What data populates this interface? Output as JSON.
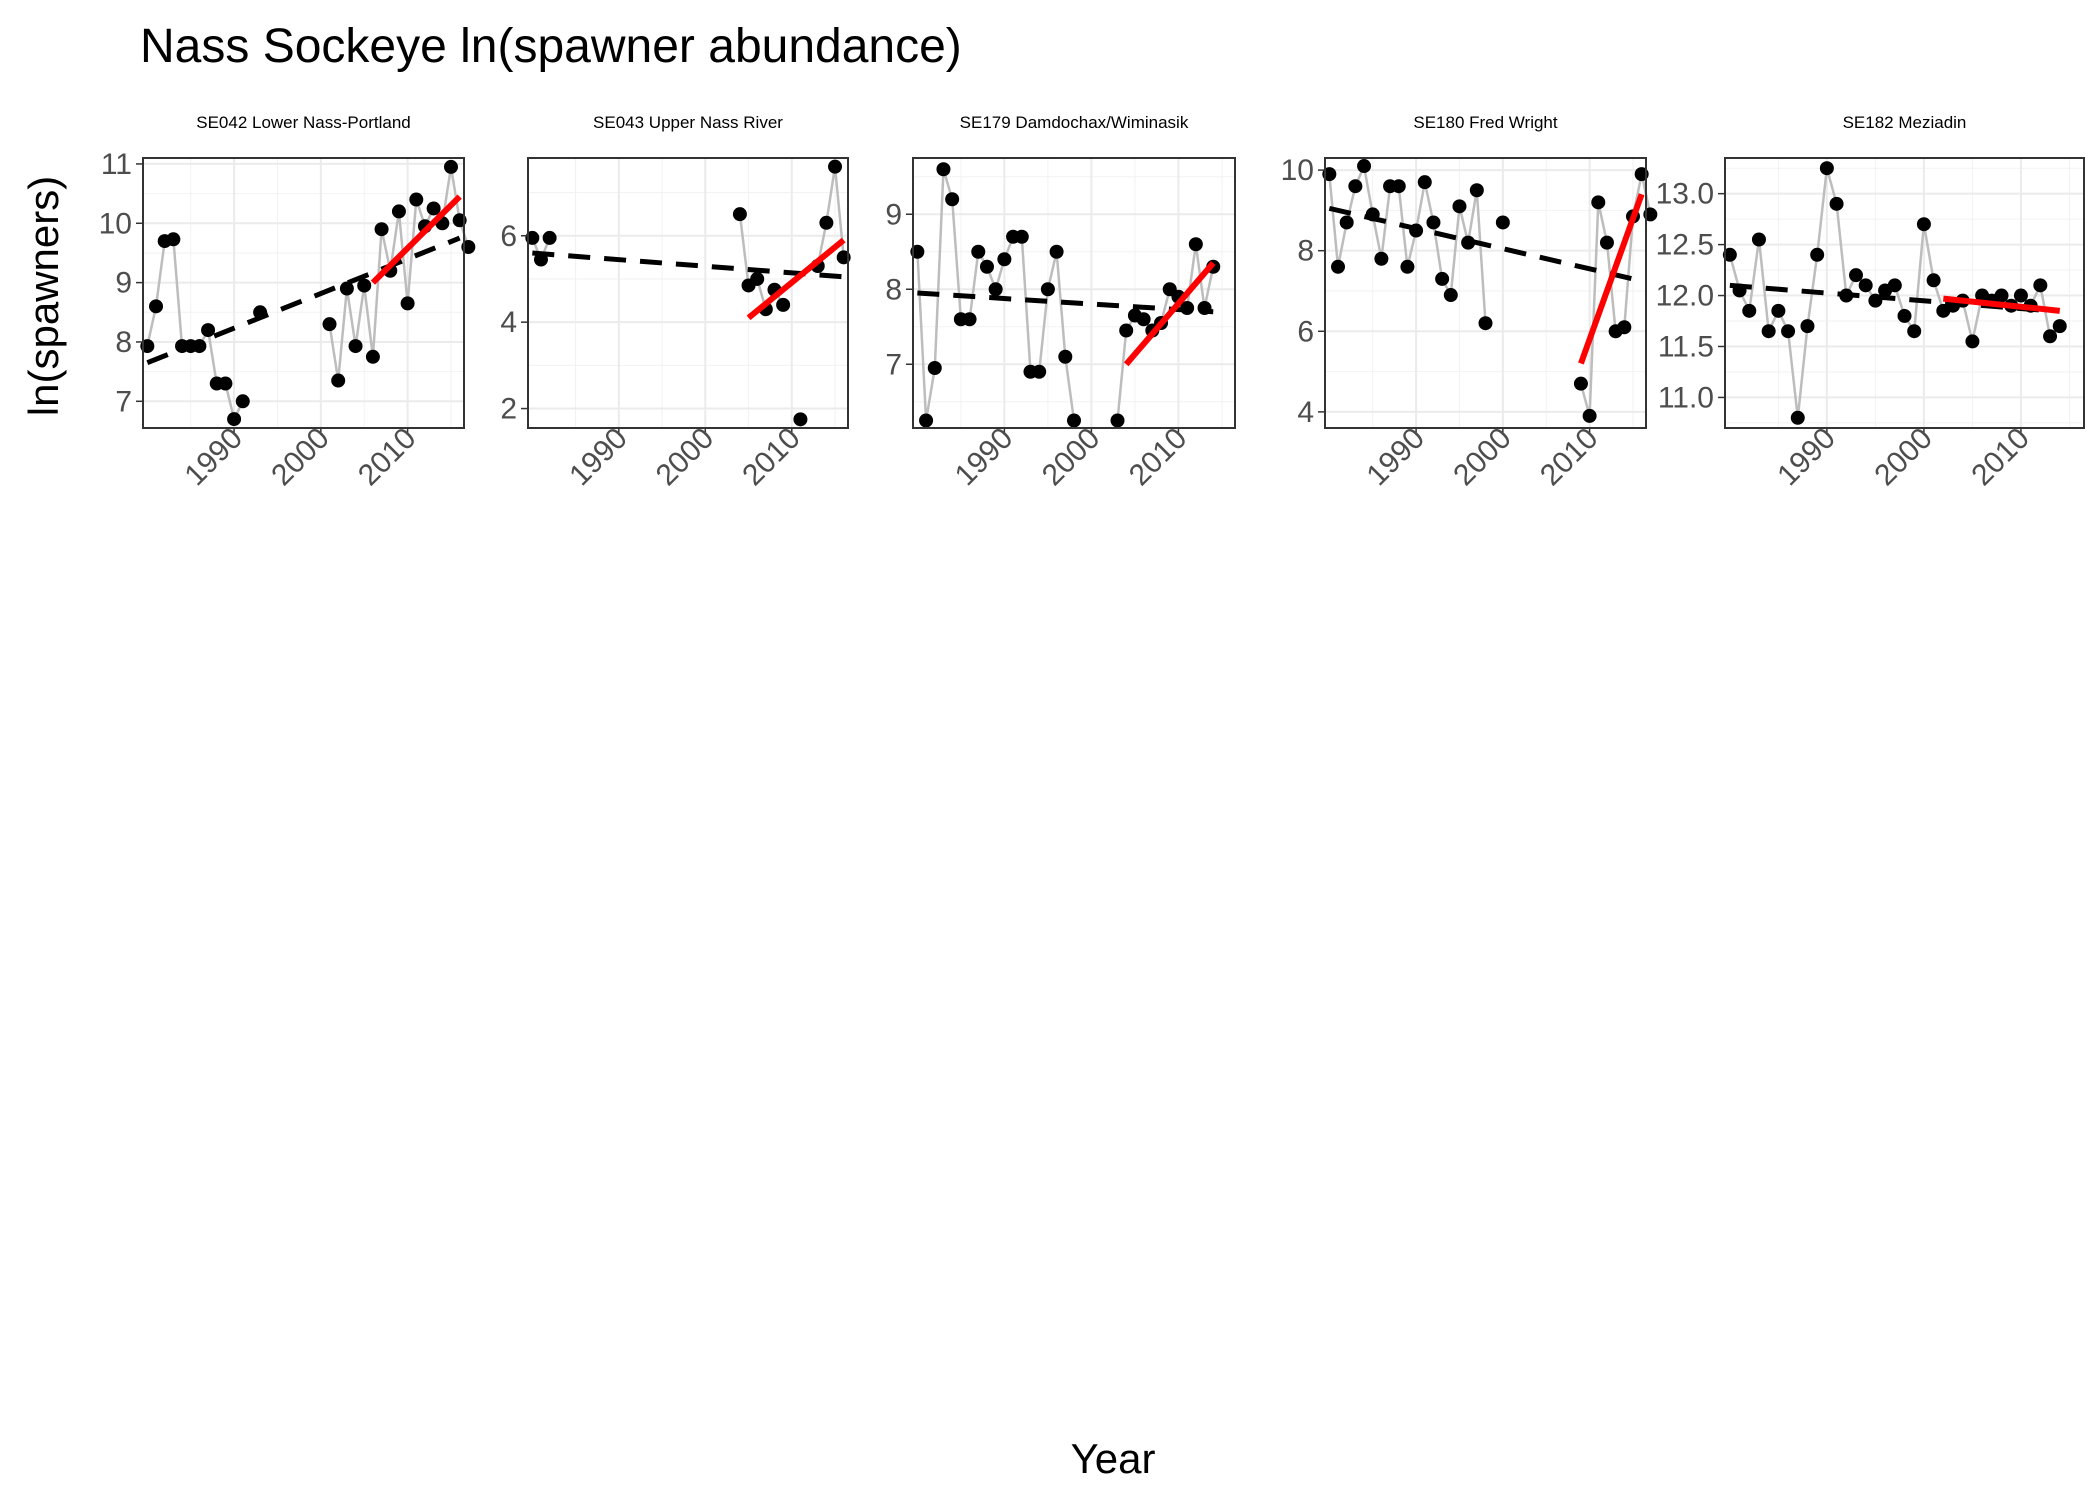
{
  "title": "Nass Sockeye ln(spawner abundance)",
  "xlabel": "Year",
  "ylabel": "ln(spawners)",
  "chart_data": {
    "type": "scatter",
    "title": "Nass Sockeye ln(spawner abundance)",
    "xlabel": "Year",
    "ylabel": "ln(spawners)",
    "grid": true,
    "legend": "none",
    "colors": {
      "points": "#000000",
      "connector": "#bdbdbd",
      "long_trend": "#000000",
      "recent_trend": "#ff0000"
    },
    "panels": [
      {
        "name": "SE042 Lower Nass-Portland",
        "xlim": [
          1979.5,
          2016.5
        ],
        "ylim": [
          6.55,
          11.1
        ],
        "x_ticks": [
          1990,
          2000,
          2010
        ],
        "y_ticks": [
          7,
          8,
          9,
          10,
          11
        ],
        "points": [
          [
            1980,
            7.93
          ],
          [
            1981,
            8.6
          ],
          [
            1982,
            9.7
          ],
          [
            1983,
            9.73
          ],
          [
            1984,
            7.93
          ],
          [
            1985,
            7.93
          ],
          [
            1986,
            7.93
          ],
          [
            1987,
            8.2
          ],
          [
            1988,
            7.3
          ],
          [
            1989,
            7.3
          ],
          [
            1990,
            6.7
          ],
          [
            1991,
            7.0
          ],
          [
            1993,
            8.5
          ],
          [
            2001,
            8.3
          ],
          [
            2002,
            7.35
          ],
          [
            2003,
            8.9
          ],
          [
            2004,
            7.93
          ],
          [
            2005,
            8.95
          ],
          [
            2006,
            7.75
          ],
          [
            2007,
            9.9
          ],
          [
            2008,
            9.2
          ],
          [
            2009,
            10.2
          ],
          [
            2010,
            8.65
          ],
          [
            2011,
            10.4
          ],
          [
            2012,
            9.95
          ],
          [
            2013,
            10.25
          ],
          [
            2014,
            10.0
          ],
          [
            2015,
            10.95
          ],
          [
            2016,
            10.05
          ],
          [
            2017,
            9.6
          ]
        ],
        "connected_segments": [
          [
            1980,
            1991
          ],
          [
            2001,
            2017
          ]
        ],
        "long_trend": {
          "x": [
            1980,
            2016
          ],
          "y": [
            7.65,
            9.75
          ]
        },
        "recent_trend": {
          "x": [
            2006,
            2016
          ],
          "y": [
            9.0,
            10.45
          ]
        }
      },
      {
        "name": "SE043 Upper Nass River",
        "xlim": [
          1979.5,
          2016.5
        ],
        "ylim": [
          1.55,
          7.8
        ],
        "x_ticks": [
          1990,
          2000,
          2010
        ],
        "y_ticks": [
          2,
          4,
          6
        ],
        "points": [
          [
            1980,
            5.95
          ],
          [
            1981,
            5.45
          ],
          [
            1982,
            5.95
          ],
          [
            2004,
            6.5
          ],
          [
            2005,
            4.85
          ],
          [
            2006,
            5.0
          ],
          [
            2007,
            4.3
          ],
          [
            2008,
            4.75
          ],
          [
            2009,
            4.4
          ],
          [
            2011,
            1.75
          ],
          [
            2013,
            5.3
          ],
          [
            2014,
            6.3
          ],
          [
            2015,
            7.6
          ],
          [
            2016,
            5.5
          ]
        ],
        "connected_segments": [
          [
            1980,
            1982
          ],
          [
            2004,
            2009
          ],
          [
            2013,
            2016
          ]
        ],
        "long_trend": {
          "x": [
            1980,
            2016
          ],
          "y": [
            5.6,
            5.05
          ]
        },
        "recent_trend": {
          "x": [
            2005,
            2016
          ],
          "y": [
            4.1,
            5.9
          ]
        }
      },
      {
        "name": "SE179 Damdochax/Wiminasik",
        "xlim": [
          1979.5,
          2016.5
        ],
        "ylim": [
          6.15,
          9.75
        ],
        "x_ticks": [
          1990,
          2000,
          2010
        ],
        "y_ticks": [
          7,
          8,
          9
        ],
        "points": [
          [
            1980,
            8.5
          ],
          [
            1981,
            6.25
          ],
          [
            1982,
            6.95
          ],
          [
            1983,
            9.6
          ],
          [
            1984,
            9.2
          ],
          [
            1985,
            7.6
          ],
          [
            1986,
            7.6
          ],
          [
            1987,
            8.5
          ],
          [
            1988,
            8.3
          ],
          [
            1989,
            8.0
          ],
          [
            1990,
            8.4
          ],
          [
            1991,
            8.7
          ],
          [
            1992,
            8.7
          ],
          [
            1993,
            6.9
          ],
          [
            1994,
            6.9
          ],
          [
            1995,
            8.0
          ],
          [
            1996,
            8.5
          ],
          [
            1997,
            7.1
          ],
          [
            1998,
            6.25
          ],
          [
            2003,
            6.25
          ],
          [
            2004,
            7.45
          ],
          [
            2005,
            7.65
          ],
          [
            2006,
            7.6
          ],
          [
            2007,
            7.45
          ],
          [
            2008,
            7.55
          ],
          [
            2009,
            8.0
          ],
          [
            2010,
            7.9
          ],
          [
            2011,
            7.75
          ],
          [
            2012,
            8.6
          ],
          [
            2013,
            7.75
          ],
          [
            2014,
            8.3
          ]
        ],
        "connected_segments": [
          [
            1980,
            1998
          ],
          [
            2003,
            2014
          ]
        ],
        "long_trend": {
          "x": [
            1980,
            2014
          ],
          "y": [
            7.95,
            7.7
          ]
        },
        "recent_trend": {
          "x": [
            2004,
            2014
          ],
          "y": [
            7.0,
            8.35
          ]
        }
      },
      {
        "name": "SE180 Fred Wright",
        "xlim": [
          1979.5,
          2016.5
        ],
        "ylim": [
          3.6,
          10.3
        ],
        "x_ticks": [
          1990,
          2000,
          2010
        ],
        "y_ticks": [
          4,
          6,
          8,
          10
        ],
        "points": [
          [
            1980,
            9.9
          ],
          [
            1981,
            7.6
          ],
          [
            1982,
            8.7
          ],
          [
            1983,
            9.6
          ],
          [
            1984,
            10.1
          ],
          [
            1985,
            8.9
          ],
          [
            1986,
            7.8
          ],
          [
            1987,
            9.6
          ],
          [
            1988,
            9.6
          ],
          [
            1989,
            7.6
          ],
          [
            1990,
            8.5
          ],
          [
            1991,
            9.7
          ],
          [
            1992,
            8.7
          ],
          [
            1993,
            7.3
          ],
          [
            1994,
            6.9
          ],
          [
            1995,
            9.1
          ],
          [
            1996,
            8.2
          ],
          [
            1997,
            9.5
          ],
          [
            1998,
            6.2
          ],
          [
            2000,
            8.7
          ],
          [
            2009,
            4.7
          ],
          [
            2010,
            3.9
          ],
          [
            2011,
            9.2
          ],
          [
            2012,
            8.2
          ],
          [
            2013,
            6.0
          ],
          [
            2014,
            6.1
          ],
          [
            2015,
            8.85
          ],
          [
            2016,
            9.9
          ],
          [
            2017,
            8.9
          ]
        ],
        "connected_segments": [
          [
            1980,
            1998
          ],
          [
            2009,
            2017
          ]
        ],
        "long_trend": {
          "x": [
            1980,
            2015
          ],
          "y": [
            9.05,
            7.3
          ]
        },
        "recent_trend": {
          "x": [
            2009,
            2016
          ],
          "y": [
            5.2,
            9.4
          ]
        }
      },
      {
        "name": "SE182 Meziadin",
        "xlim": [
          1979.5,
          2016.5
        ],
        "ylim": [
          10.7,
          13.35
        ],
        "x_ticks": [
          1990,
          2000,
          2010
        ],
        "y_ticks": [
          11.0,
          11.5,
          12.0,
          12.5,
          13.0
        ],
        "y_tick_labels": [
          "11.0",
          "11.5",
          "12.0",
          "12.5",
          "13.0"
        ],
        "points": [
          [
            1980,
            12.4
          ],
          [
            1981,
            12.05
          ],
          [
            1982,
            11.85
          ],
          [
            1983,
            12.55
          ],
          [
            1984,
            11.65
          ],
          [
            1985,
            11.85
          ],
          [
            1986,
            11.65
          ],
          [
            1987,
            10.8
          ],
          [
            1988,
            11.7
          ],
          [
            1989,
            12.4
          ],
          [
            1990,
            13.25
          ],
          [
            1991,
            12.9
          ],
          [
            1992,
            12.0
          ],
          [
            1993,
            12.2
          ],
          [
            1994,
            12.1
          ],
          [
            1995,
            11.95
          ],
          [
            1996,
            12.05
          ],
          [
            1997,
            12.1
          ],
          [
            1998,
            11.8
          ],
          [
            1999,
            11.65
          ],
          [
            2000,
            12.7
          ],
          [
            2001,
            12.15
          ],
          [
            2002,
            11.85
          ],
          [
            2003,
            11.9
          ],
          [
            2004,
            11.95
          ],
          [
            2005,
            11.55
          ],
          [
            2006,
            12.0
          ],
          [
            2007,
            11.95
          ],
          [
            2008,
            12.0
          ],
          [
            2009,
            11.9
          ],
          [
            2010,
            12.0
          ],
          [
            2011,
            11.9
          ],
          [
            2012,
            12.1
          ],
          [
            2013,
            11.6
          ],
          [
            2014,
            11.7
          ]
        ],
        "connected_segments": [
          [
            1980,
            2014
          ]
        ],
        "long_trend": {
          "x": [
            1980,
            2013
          ],
          "y": [
            12.1,
            11.85
          ]
        },
        "recent_trend": {
          "x": [
            2002,
            2014
          ],
          "y": [
            11.97,
            11.85
          ]
        }
      }
    ]
  }
}
